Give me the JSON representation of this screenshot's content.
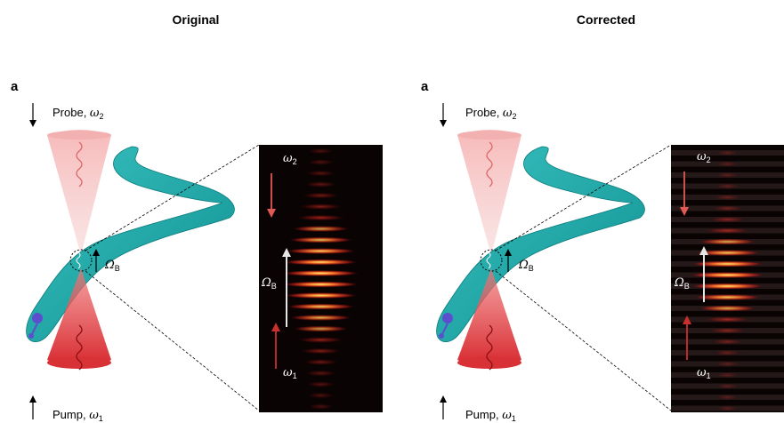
{
  "panels": [
    {
      "title": "Original",
      "variant": "original",
      "label": "a",
      "probe": {
        "text": "Probe, ",
        "symbol": "ω",
        "sub": "2"
      },
      "pump": {
        "text": "Pump, ",
        "symbol": "ω",
        "sub": "1"
      },
      "brillouin": {
        "symbol": "Ω",
        "sub": "B"
      },
      "inset_top": {
        "symbol": "ω",
        "sub": "2"
      },
      "inset_bottom": {
        "symbol": "ω",
        "sub": "1"
      },
      "inset_mid": {
        "symbol": "Ω",
        "sub": "B"
      }
    },
    {
      "title": "Corrected",
      "variant": "corrected",
      "label": "a",
      "probe": {
        "text": "Probe, ",
        "symbol": "ω",
        "sub": "2"
      },
      "pump": {
        "text": "Pump, ",
        "symbol": "ω",
        "sub": "1"
      },
      "brillouin": {
        "symbol": "Ω",
        "sub": "B"
      },
      "inset_top": {
        "symbol": "ω",
        "sub": "2"
      },
      "inset_bottom": {
        "symbol": "ω",
        "sub": "1"
      },
      "inset_mid": {
        "symbol": "Ω",
        "sub": "B"
      }
    }
  ],
  "colors": {
    "fiber": "#1aa7a7",
    "fiber_dark": "#0d7f80",
    "probe_cone": "#f4a7a7",
    "pump_cone": "#e2373a",
    "red_arrow": "#d9534f",
    "white_arrow": "#e6e6e6",
    "inset_bg": "#0a0303",
    "atom": "#5b4fcf"
  }
}
